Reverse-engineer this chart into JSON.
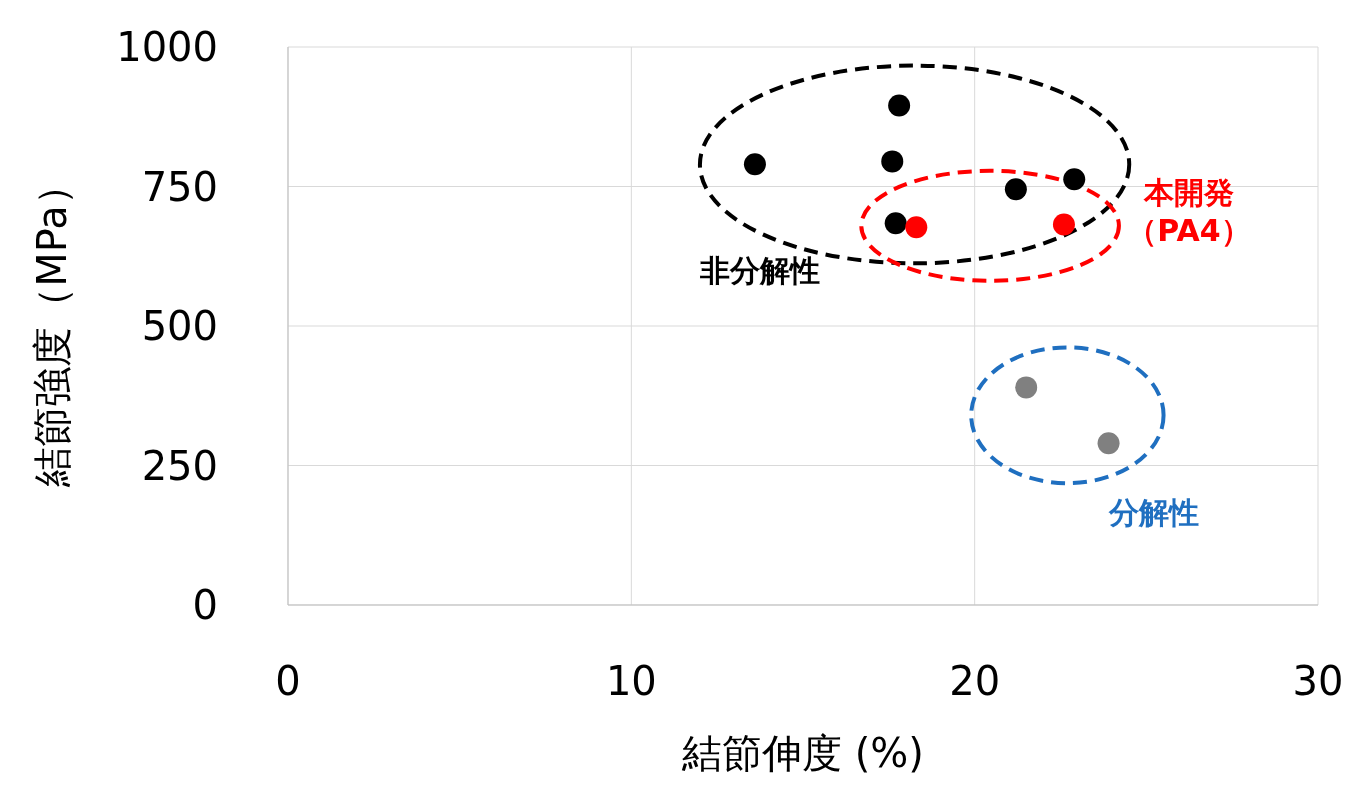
{
  "chart_data": {
    "type": "scatter",
    "xlabel": "結節伸度 (%)",
    "ylabel": "結節強度（MPa）",
    "xlim": [
      0,
      30
    ],
    "xticks": [
      0,
      10,
      20,
      30
    ],
    "ylim": [
      0,
      1000
    ],
    "yticks": [
      0,
      250,
      500,
      750,
      1000
    ],
    "grid": true,
    "marker": "circle",
    "series": [
      {
        "color": "#000000",
        "x": [
          13.6,
          17.8,
          17.6,
          17.7,
          21.2,
          22.9
        ],
        "values": [
          790,
          895,
          795,
          684,
          745,
          763
        ]
      },
      {
        "color": "#ff0000",
        "x": [
          18.3,
          22.6
        ],
        "values": [
          677,
          682
        ]
      },
      {
        "color": "#808080",
        "x": [
          21.5,
          23.9
        ],
        "values": [
          390,
          290
        ]
      }
    ],
    "annotations": [
      "非分解性",
      "本開発（PA4）",
      "分解性"
    ]
  }
}
